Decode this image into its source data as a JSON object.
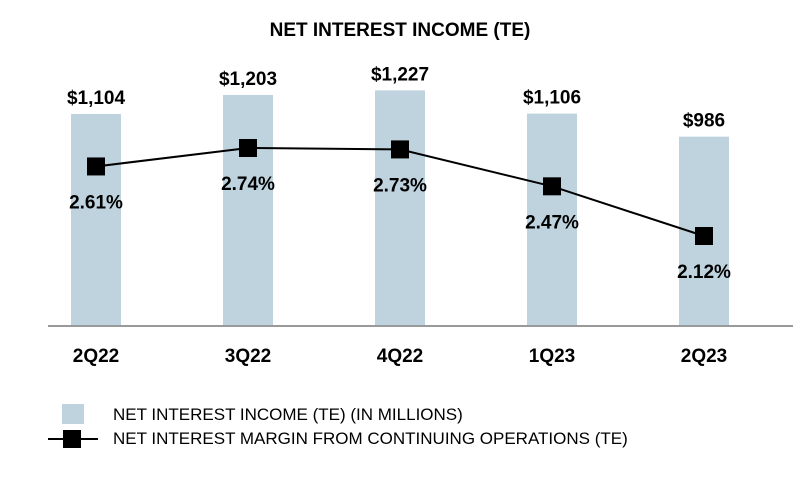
{
  "chart_data": {
    "type": "bar",
    "title": "NET INTEREST INCOME (TE)",
    "categories": [
      "2Q22",
      "3Q22",
      "4Q22",
      "1Q23",
      "2Q23"
    ],
    "series": [
      {
        "name": "NET INTEREST INCOME (TE) (IN MILLIONS)",
        "kind": "bar",
        "values": [
          1104,
          1203,
          1227,
          1106,
          986
        ],
        "labels": [
          "$1,104",
          "$1,203",
          "$1,227",
          "$1,106",
          "$986"
        ],
        "color": "#bfd3df"
      },
      {
        "name": "NET INTEREST MARGIN FROM CONTINUING OPERATIONS (TE)",
        "kind": "line",
        "values": [
          2.61,
          2.74,
          2.73,
          2.47,
          2.12
        ],
        "labels": [
          "2.61%",
          "2.74%",
          "2.73%",
          "2.47%",
          "2.12%"
        ],
        "color": "#000000"
      }
    ],
    "ylim_bars": [
      0,
      1400
    ],
    "ylim_margin": [
      1.3,
      3.0
    ],
    "grid": false,
    "legend_position": "bottom-left"
  }
}
